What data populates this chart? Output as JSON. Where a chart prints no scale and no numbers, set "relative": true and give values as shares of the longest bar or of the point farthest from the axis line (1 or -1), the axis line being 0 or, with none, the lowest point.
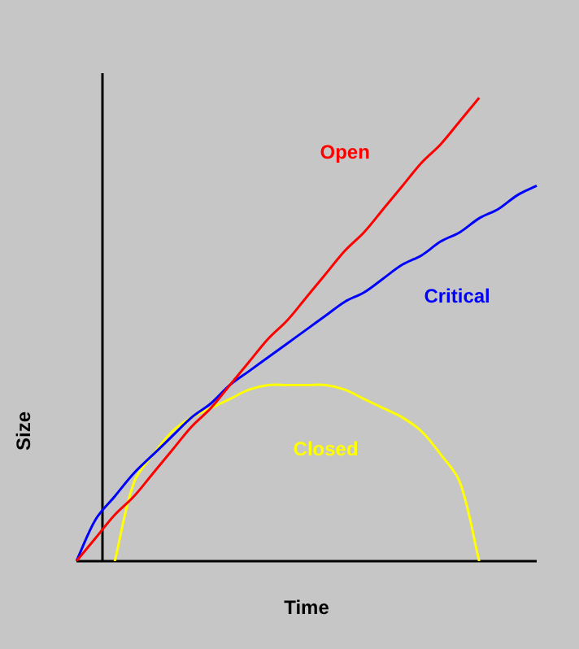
{
  "chart_data": {
    "type": "line",
    "xlabel": "Time",
    "ylabel": "Size",
    "relative": true,
    "legend": false,
    "marker": "none",
    "line_style": "solid",
    "categories": [
      null,
      null,
      null,
      null,
      null,
      null,
      null,
      null,
      null,
      null,
      null,
      null,
      null,
      null,
      null,
      null,
      null,
      null,
      null,
      null,
      null,
      null,
      null,
      null,
      null
    ],
    "series": [
      {
        "name": "Open",
        "color": "#ff0000",
        "values": [
          0,
          0.05,
          0.1,
          0.14,
          0.19,
          0.24,
          0.29,
          0.33,
          0.38,
          0.43,
          0.48,
          0.52,
          0.57,
          0.62,
          0.67,
          0.71,
          0.76,
          0.81,
          0.86,
          0.9,
          0.95,
          1,
          null,
          null,
          null
        ]
      },
      {
        "name": "Critical",
        "color": "#0000ff",
        "values": [
          0,
          0.09,
          0.14,
          0.19,
          0.23,
          0.27,
          0.31,
          0.34,
          0.38,
          0.41,
          0.44,
          0.47,
          0.5,
          0.53,
          0.56,
          0.58,
          0.61,
          0.64,
          0.66,
          0.69,
          0.71,
          0.74,
          0.76,
          0.79,
          0.81
        ]
      },
      {
        "name": "Closed",
        "color": "#ffff00",
        "values": [
          null,
          null,
          0,
          0.17,
          0.23,
          0.28,
          0.31,
          0.33,
          0.35,
          0.37,
          0.38,
          0.38,
          0.38,
          0.38,
          0.37,
          0.35,
          0.33,
          0.31,
          0.28,
          0.23,
          0.17,
          0,
          null,
          null,
          null
        ]
      }
    ]
  }
}
